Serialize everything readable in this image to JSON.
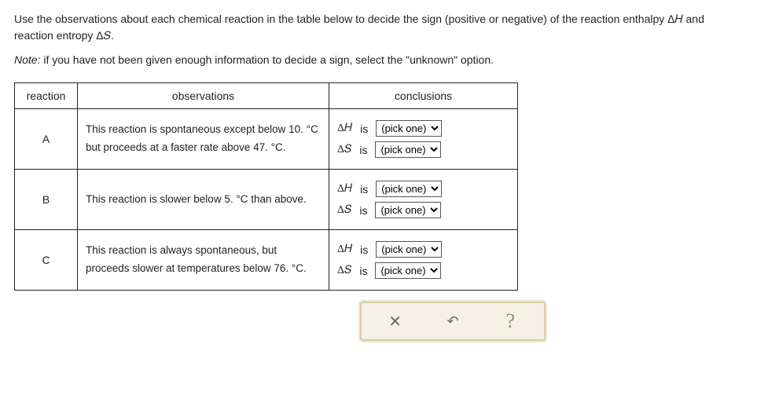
{
  "instructions": "Use the observations about each chemical reaction in the table below to decide the sign (positive or negative) of the reaction enthalpy Δ𝐻 and reaction entropy Δ𝑆.",
  "note_prefix": "Note:",
  "note_body": " if you have not been given enough information to decide a sign, select the \"unknown\" option.",
  "headers": {
    "reaction": "reaction",
    "observations": "observations",
    "conclusions": "conclusions"
  },
  "rows": {
    "A": {
      "label": "A",
      "obs_pre": "This reaction is spontaneous except below ",
      "obs_num1": "10. °C",
      "obs_mid": " but proceeds at a faster rate above ",
      "obs_num2": "47. °C",
      "obs_post": "."
    },
    "B": {
      "label": "B",
      "obs_pre": "This reaction is slower below ",
      "obs_num1": "5. °C",
      "obs_mid": " than above.",
      "obs_num2": "",
      "obs_post": ""
    },
    "C": {
      "label": "C",
      "obs_pre": "This reaction is always spontaneous, but proceeds slower at temperatures below ",
      "obs_num1": "76. °C",
      "obs_mid": ".",
      "obs_num2": "",
      "obs_post": ""
    }
  },
  "symbols": {
    "dH": "Δ𝐻",
    "dS": "Δ𝑆",
    "is": "is"
  },
  "select": {
    "placeholder": "(pick one)"
  },
  "buttons": {
    "close": "✕",
    "reset": "↶",
    "help": "?"
  }
}
